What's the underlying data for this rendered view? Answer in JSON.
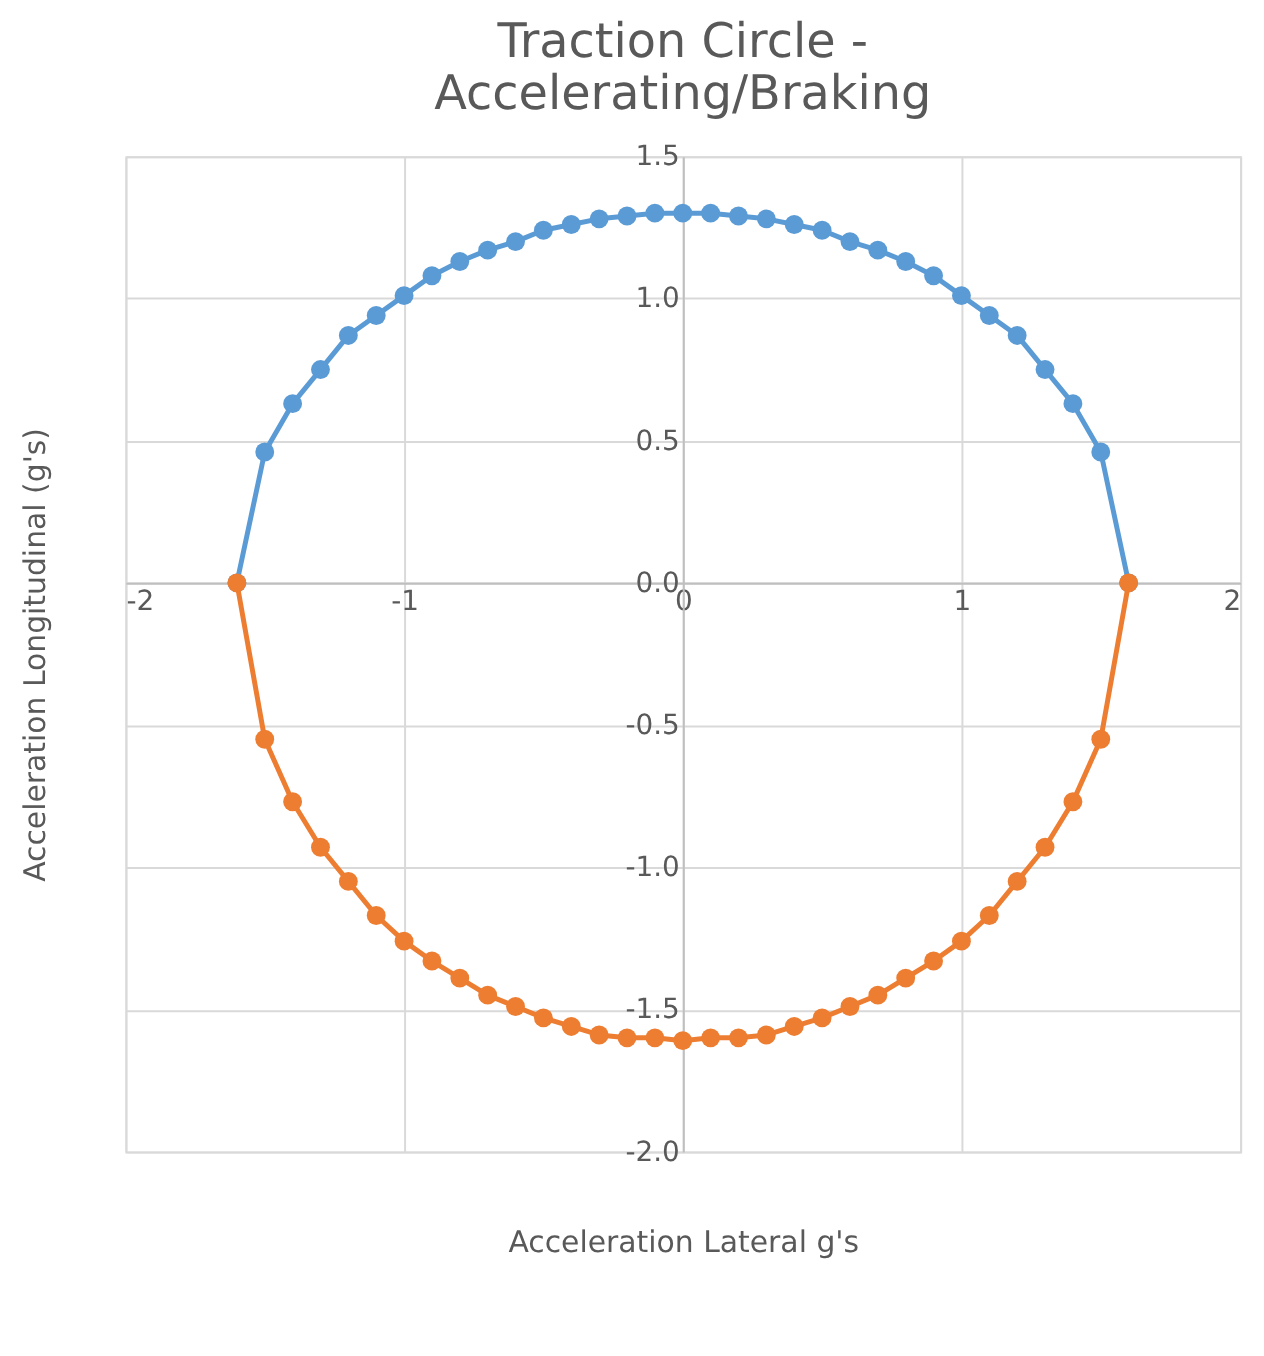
{
  "chart_data": {
    "type": "line",
    "title": "Traction Circle -\nAccelerating/Braking",
    "xlabel": "Acceleration Lateral g's",
    "ylabel": "Acceleration Longitudinal (g's)",
    "x": [
      -1.6,
      -1.5,
      -1.4,
      -1.3,
      -1.2,
      -1.1,
      -1.0,
      -0.9,
      -0.8,
      -0.7,
      -0.6,
      -0.5,
      -0.4,
      -0.3,
      -0.2,
      -0.1,
      0,
      0.1,
      0.2,
      0.3,
      0.4,
      0.5,
      0.6,
      0.7,
      0.8,
      0.9,
      1.0,
      1.1,
      1.2,
      1.3,
      1.4,
      1.5,
      1.6
    ],
    "series": [
      {
        "color": "#5b9bd5",
        "values": [
          0,
          0.46,
          0.63,
          0.75,
          0.87,
          0.94,
          1.01,
          1.08,
          1.13,
          1.17,
          1.2,
          1.24,
          1.26,
          1.28,
          1.29,
          1.3,
          1.3,
          1.3,
          1.29,
          1.28,
          1.26,
          1.24,
          1.2,
          1.17,
          1.13,
          1.08,
          1.01,
          0.94,
          0.87,
          0.75,
          0.63,
          0.46,
          0
        ]
      },
      {
        "color": "#ed7d31",
        "values": [
          0,
          -0.55,
          -0.77,
          -0.93,
          -1.05,
          -1.17,
          -1.26,
          -1.33,
          -1.39,
          -1.45,
          -1.49,
          -1.53,
          -1.56,
          -1.59,
          -1.6,
          -1.6,
          -1.61,
          -1.6,
          -1.6,
          -1.59,
          -1.56,
          -1.53,
          -1.49,
          -1.45,
          -1.39,
          -1.33,
          -1.26,
          -1.17,
          -1.05,
          -0.93,
          -0.77,
          -0.55,
          0
        ]
      }
    ],
    "xlim": [
      -2,
      2
    ],
    "xticks": [
      -2,
      -1,
      0,
      1,
      2
    ],
    "ylim": [
      -2.0,
      1.5
    ],
    "yticks": [
      1.5,
      {
        "value": 1,
        "label": "1.0"
      },
      0.5,
      {
        "value": 0,
        "label": "0.0"
      },
      -0.5,
      {
        "value": -1,
        "label": "-1.0"
      },
      -1.5,
      {
        "value": -2,
        "label": "-2.0"
      }
    ],
    "grid": true,
    "marker": "circle",
    "line_style": "solid"
  }
}
